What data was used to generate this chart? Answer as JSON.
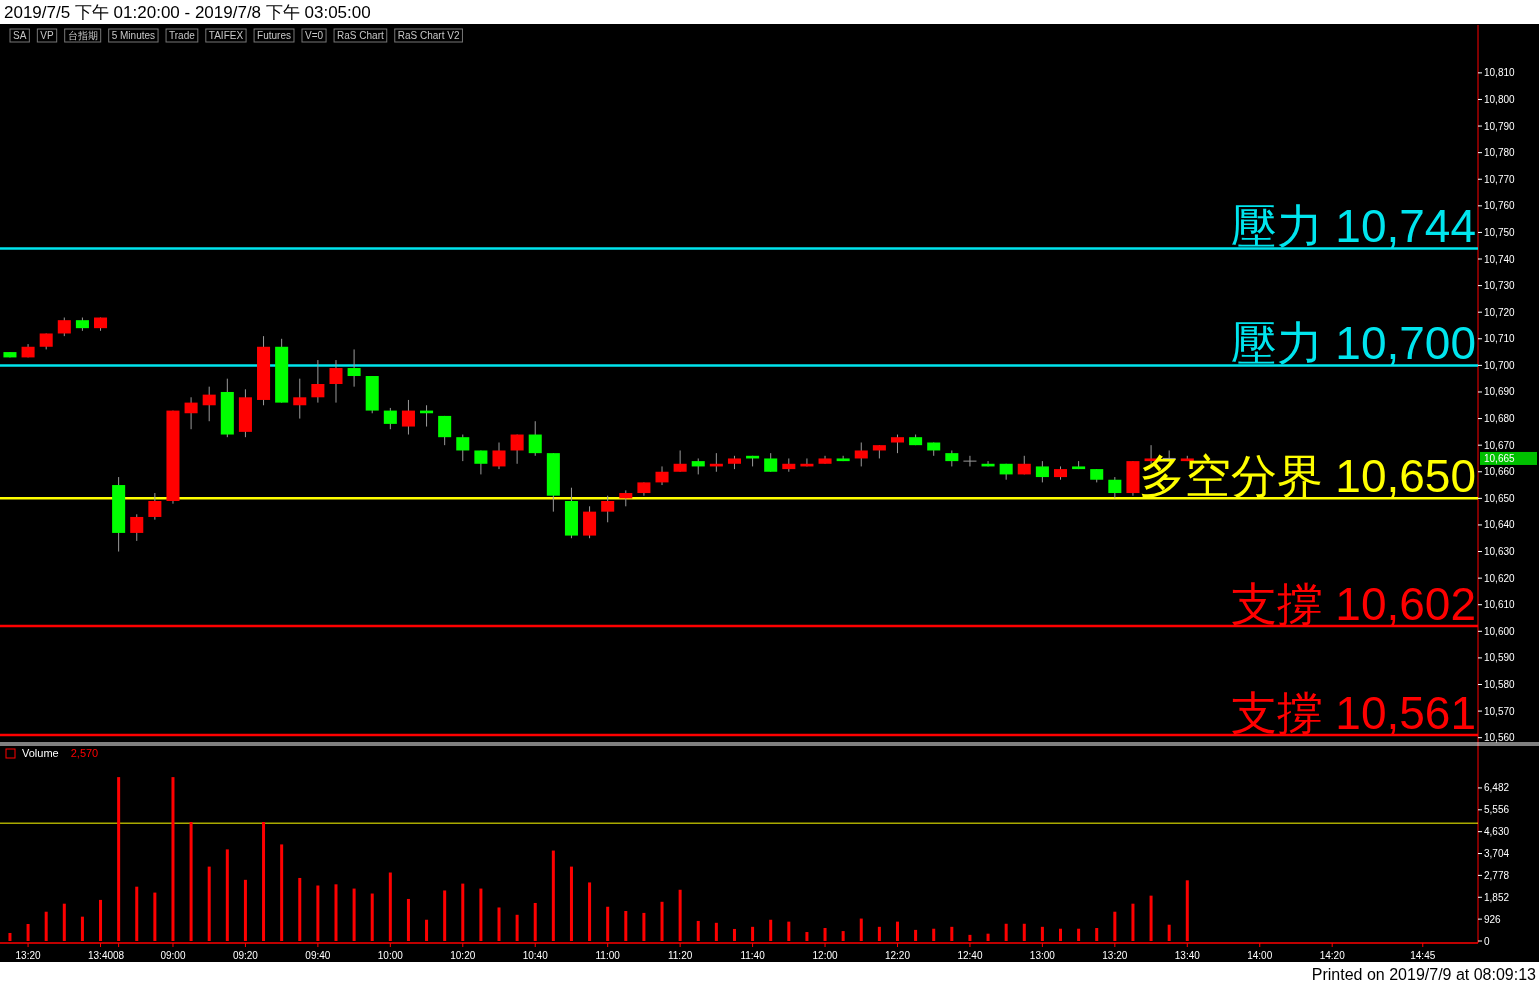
{
  "chart_data": [
    {
      "type": "candlestick",
      "title": "2019/7/5 下午 01:20:00 - 2019/7/8 下午 03:05:00",
      "annotations": [
        "SA",
        "VP",
        "台指期",
        "5 Minutes",
        "Trade",
        "TAIFEX",
        "Futures",
        "V=0",
        "RaS Chart",
        "RaS Chart V2",
        "10,665"
      ],
      "categories": [
        null,
        null,
        null,
        null,
        null,
        null,
        null,
        null,
        null,
        null,
        null,
        null,
        null,
        null,
        null,
        null,
        null,
        null,
        null,
        null,
        null,
        null,
        null,
        null,
        null,
        null,
        null,
        null,
        null,
        null,
        null,
        null,
        null,
        null,
        null,
        null,
        null,
        null,
        null,
        null,
        null,
        null,
        null,
        null,
        null,
        null,
        null,
        null,
        null,
        null,
        null,
        null,
        null,
        null,
        null,
        null,
        null,
        null,
        null,
        null,
        null,
        null,
        null,
        null,
        null,
        null,
        null,
        null,
        null,
        null,
        null,
        null,
        null,
        null,
        null,
        null,
        null,
        null,
        null
      ],
      "ohlc": [
        [
          10705,
          10705,
          10703,
          10703
        ],
        [
          10703,
          10708,
          10703,
          10707
        ],
        [
          10707,
          10712,
          10706,
          10712
        ],
        [
          10712,
          10718,
          10711,
          10717
        ],
        [
          10717,
          10718,
          10713,
          10714
        ],
        [
          10714,
          10718,
          10713,
          10718
        ],
        [
          10655,
          10658,
          10630,
          10637
        ],
        [
          10637,
          10644,
          10634,
          10643
        ],
        [
          10643,
          10652,
          10642,
          10649
        ],
        [
          10649,
          10683,
          10648,
          10683
        ],
        [
          10682,
          10688,
          10676,
          10686
        ],
        [
          10685,
          10692,
          10679,
          10689
        ],
        [
          10690,
          10695,
          10673,
          10674
        ],
        [
          10675,
          10691,
          10673,
          10688
        ],
        [
          10687,
          10711,
          10685,
          10707
        ],
        [
          10707,
          10710,
          10686,
          10686
        ],
        [
          10685,
          10695,
          10680,
          10688
        ],
        [
          10688,
          10702,
          10686,
          10693
        ],
        [
          10693,
          10702,
          10686,
          10699
        ],
        [
          10699,
          10706,
          10692,
          10696
        ],
        [
          10696,
          10696,
          10682,
          10683
        ],
        [
          10683,
          10684,
          10676,
          10678
        ],
        [
          10677,
          10687,
          10674,
          10683
        ],
        [
          10683,
          10685,
          10677,
          10682
        ],
        [
          10681,
          10681,
          10670,
          10673
        ],
        [
          10673,
          10674,
          10664,
          10668
        ],
        [
          10668,
          10668,
          10659,
          10663
        ],
        [
          10662,
          10671,
          10661,
          10668
        ],
        [
          10668,
          10674,
          10663,
          10674
        ],
        [
          10674,
          10679,
          10666,
          10667
        ],
        [
          10667,
          10667,
          10645,
          10651
        ],
        [
          10649,
          10654,
          10635,
          10636
        ],
        [
          10636,
          10647,
          10635,
          10645
        ],
        [
          10645,
          10651,
          10641,
          10649
        ],
        [
          10650,
          10653,
          10647,
          10652
        ],
        [
          10652,
          10656,
          10651,
          10656
        ],
        [
          10656,
          10662,
          10655,
          10660
        ],
        [
          10660,
          10668,
          10660,
          10663
        ],
        [
          10664,
          10665,
          10659,
          10662
        ],
        [
          10662,
          10667,
          10660,
          10663
        ],
        [
          10663,
          10666,
          10661,
          10665
        ],
        [
          10666,
          10666,
          10662,
          10665
        ],
        [
          10665,
          10667,
          10660,
          10660
        ],
        [
          10661,
          10665,
          10660,
          10663
        ],
        [
          10662,
          10665,
          10662,
          10663
        ],
        [
          10663,
          10666,
          10663,
          10665
        ],
        [
          10665,
          10666,
          10664,
          10664
        ],
        [
          10665,
          10671,
          10662,
          10668
        ],
        [
          10668,
          10670,
          10665,
          10670
        ],
        [
          10671,
          10674,
          10667,
          10673
        ],
        [
          10673,
          10674,
          10670,
          10670
        ],
        [
          10671,
          10671,
          10666,
          10668
        ],
        [
          10667,
          10668,
          10662,
          10664
        ],
        [
          10664,
          10666,
          10662,
          10664
        ],
        [
          10663,
          10664,
          10662,
          10662
        ],
        [
          10663,
          10663,
          10657,
          10659
        ],
        [
          10659,
          10666,
          10659,
          10663
        ],
        [
          10662,
          10664,
          10656,
          10658
        ],
        [
          10658,
          10662,
          10657,
          10661
        ],
        [
          10662,
          10664,
          10661,
          10661
        ],
        [
          10661,
          10661,
          10656,
          10657
        ],
        [
          10657,
          10658,
          10650,
          10652
        ],
        [
          10652,
          10664,
          10651,
          10664
        ],
        [
          10664,
          10670,
          10663,
          10665
        ],
        [
          10665,
          10668,
          10664,
          10665
        ],
        [
          10664,
          10666,
          10664,
          10665
        ],
        null,
        null,
        null,
        null,
        null,
        null,
        null,
        null,
        null,
        null,
        null,
        null,
        null
      ],
      "ylim": [
        10558,
        10828
      ],
      "yticks": [
        {
          "value": 10560,
          "label": "10,560"
        },
        {
          "value": 10570,
          "label": "10,570"
        },
        {
          "value": 10580,
          "label": "10,580"
        },
        {
          "value": 10590,
          "label": "10,590"
        },
        {
          "value": 10600,
          "label": "10,600"
        },
        {
          "value": 10610,
          "label": "10,610"
        },
        {
          "value": 10620,
          "label": "10,620"
        },
        {
          "value": 10630,
          "label": "10,630"
        },
        {
          "value": 10640,
          "label": "10,640"
        },
        {
          "value": 10650,
          "label": "10,650"
        },
        {
          "value": 10660,
          "label": "10,660"
        },
        {
          "value": 10670,
          "label": "10,670"
        },
        {
          "value": 10680,
          "label": "10,680"
        },
        {
          "value": 10690,
          "label": "10,690"
        },
        {
          "value": 10700,
          "label": "10,700"
        },
        {
          "value": 10710,
          "label": "10,710"
        },
        {
          "value": 10720,
          "label": "10,720"
        },
        {
          "value": 10730,
          "label": "10,730"
        },
        {
          "value": 10740,
          "label": "10,740"
        },
        {
          "value": 10750,
          "label": "10,750"
        },
        {
          "value": 10760,
          "label": "10,760"
        },
        {
          "value": 10770,
          "label": "10,770"
        },
        {
          "value": 10780,
          "label": "10,780"
        },
        {
          "value": 10790,
          "label": "10,790"
        },
        {
          "value": 10800,
          "label": "10,800"
        },
        {
          "value": 10810,
          "label": "10,810"
        }
      ],
      "ref_lines": [
        {
          "axis": "y",
          "value": 10744,
          "label": "壓力 10,744",
          "color": "#00e5ee"
        },
        {
          "axis": "y",
          "value": 10700,
          "label": "壓力 10,700",
          "color": "#00e5ee"
        },
        {
          "axis": "y",
          "value": 10650,
          "label": "多空分界 10,650",
          "color": "#ffff00"
        },
        {
          "axis": "y",
          "value": 10602,
          "label": "支撐 10,602",
          "color": "#ff0000"
        },
        {
          "axis": "y",
          "value": 10561,
          "label": "支撐 10,561",
          "color": "#ff0000"
        }
      ],
      "tick_labels": "y"
    },
    {
      "type": "bar",
      "annotations": [
        "2,570",
        "Printed on 2019/7/9 at 08:09:13"
      ],
      "categories": [
        null,
        "13:20",
        null,
        null,
        null,
        "13:40",
        "08",
        null,
        null,
        "09:00",
        null,
        null,
        null,
        "09:20",
        null,
        null,
        null,
        "09:40",
        null,
        null,
        null,
        "10:00",
        null,
        null,
        null,
        "10:20",
        null,
        null,
        null,
        "10:40",
        null,
        null,
        null,
        "11:00",
        null,
        null,
        null,
        "11:20",
        null,
        null,
        null,
        "11:40",
        null,
        null,
        null,
        "12:00",
        null,
        null,
        null,
        "12:20",
        null,
        null,
        null,
        "12:40",
        null,
        null,
        null,
        "13:00",
        null,
        null,
        null,
        "13:20",
        null,
        null,
        null,
        "13:40",
        null,
        null,
        null,
        "14:00",
        null,
        null,
        null,
        "14:20",
        null,
        null,
        null,
        null,
        "14:45"
      ],
      "series": [
        {
          "name": "Volume",
          "color": "#ff0000",
          "values": [
            340,
            720,
            1240,
            1580,
            1030,
            1740,
            6940,
            2300,
            2050,
            6940,
            5040,
            3150,
            3880,
            2590,
            5040,
            4090,
            2670,
            2350,
            2400,
            2220,
            2010,
            2900,
            1780,
            900,
            2140,
            2430,
            2220,
            1420,
            1110,
            1610,
            3830,
            3150,
            2480,
            1450,
            1270,
            1190,
            1660,
            2170,
            850,
            770,
            510,
            600,
            900,
            820,
            380,
            550,
            420,
            950,
            600,
            820,
            470,
            520,
            600,
            260,
            310,
            730,
            730,
            600,
            520,
            520,
            550,
            1240,
            1580,
            1920,
            690,
            2570,
            null,
            null,
            null,
            null,
            null,
            null,
            null,
            null,
            null,
            null,
            null,
            null,
            null
          ]
        }
      ],
      "ylim": [
        0,
        8300
      ],
      "yticks": [
        0,
        {
          "value": 926,
          "label": "926"
        },
        {
          "value": 1852,
          "label": "1,852"
        },
        {
          "value": 2778,
          "label": "2,778"
        },
        {
          "value": 3704,
          "label": "3,704"
        },
        {
          "value": 4630,
          "label": "4,630"
        },
        {
          "value": 5556,
          "label": "5,556"
        },
        {
          "value": 6482,
          "label": "6,482"
        }
      ],
      "ref_lines": [
        {
          "axis": "y",
          "value": 4990,
          "color": "#ffff00"
        }
      ],
      "legend": "top left"
    }
  ]
}
